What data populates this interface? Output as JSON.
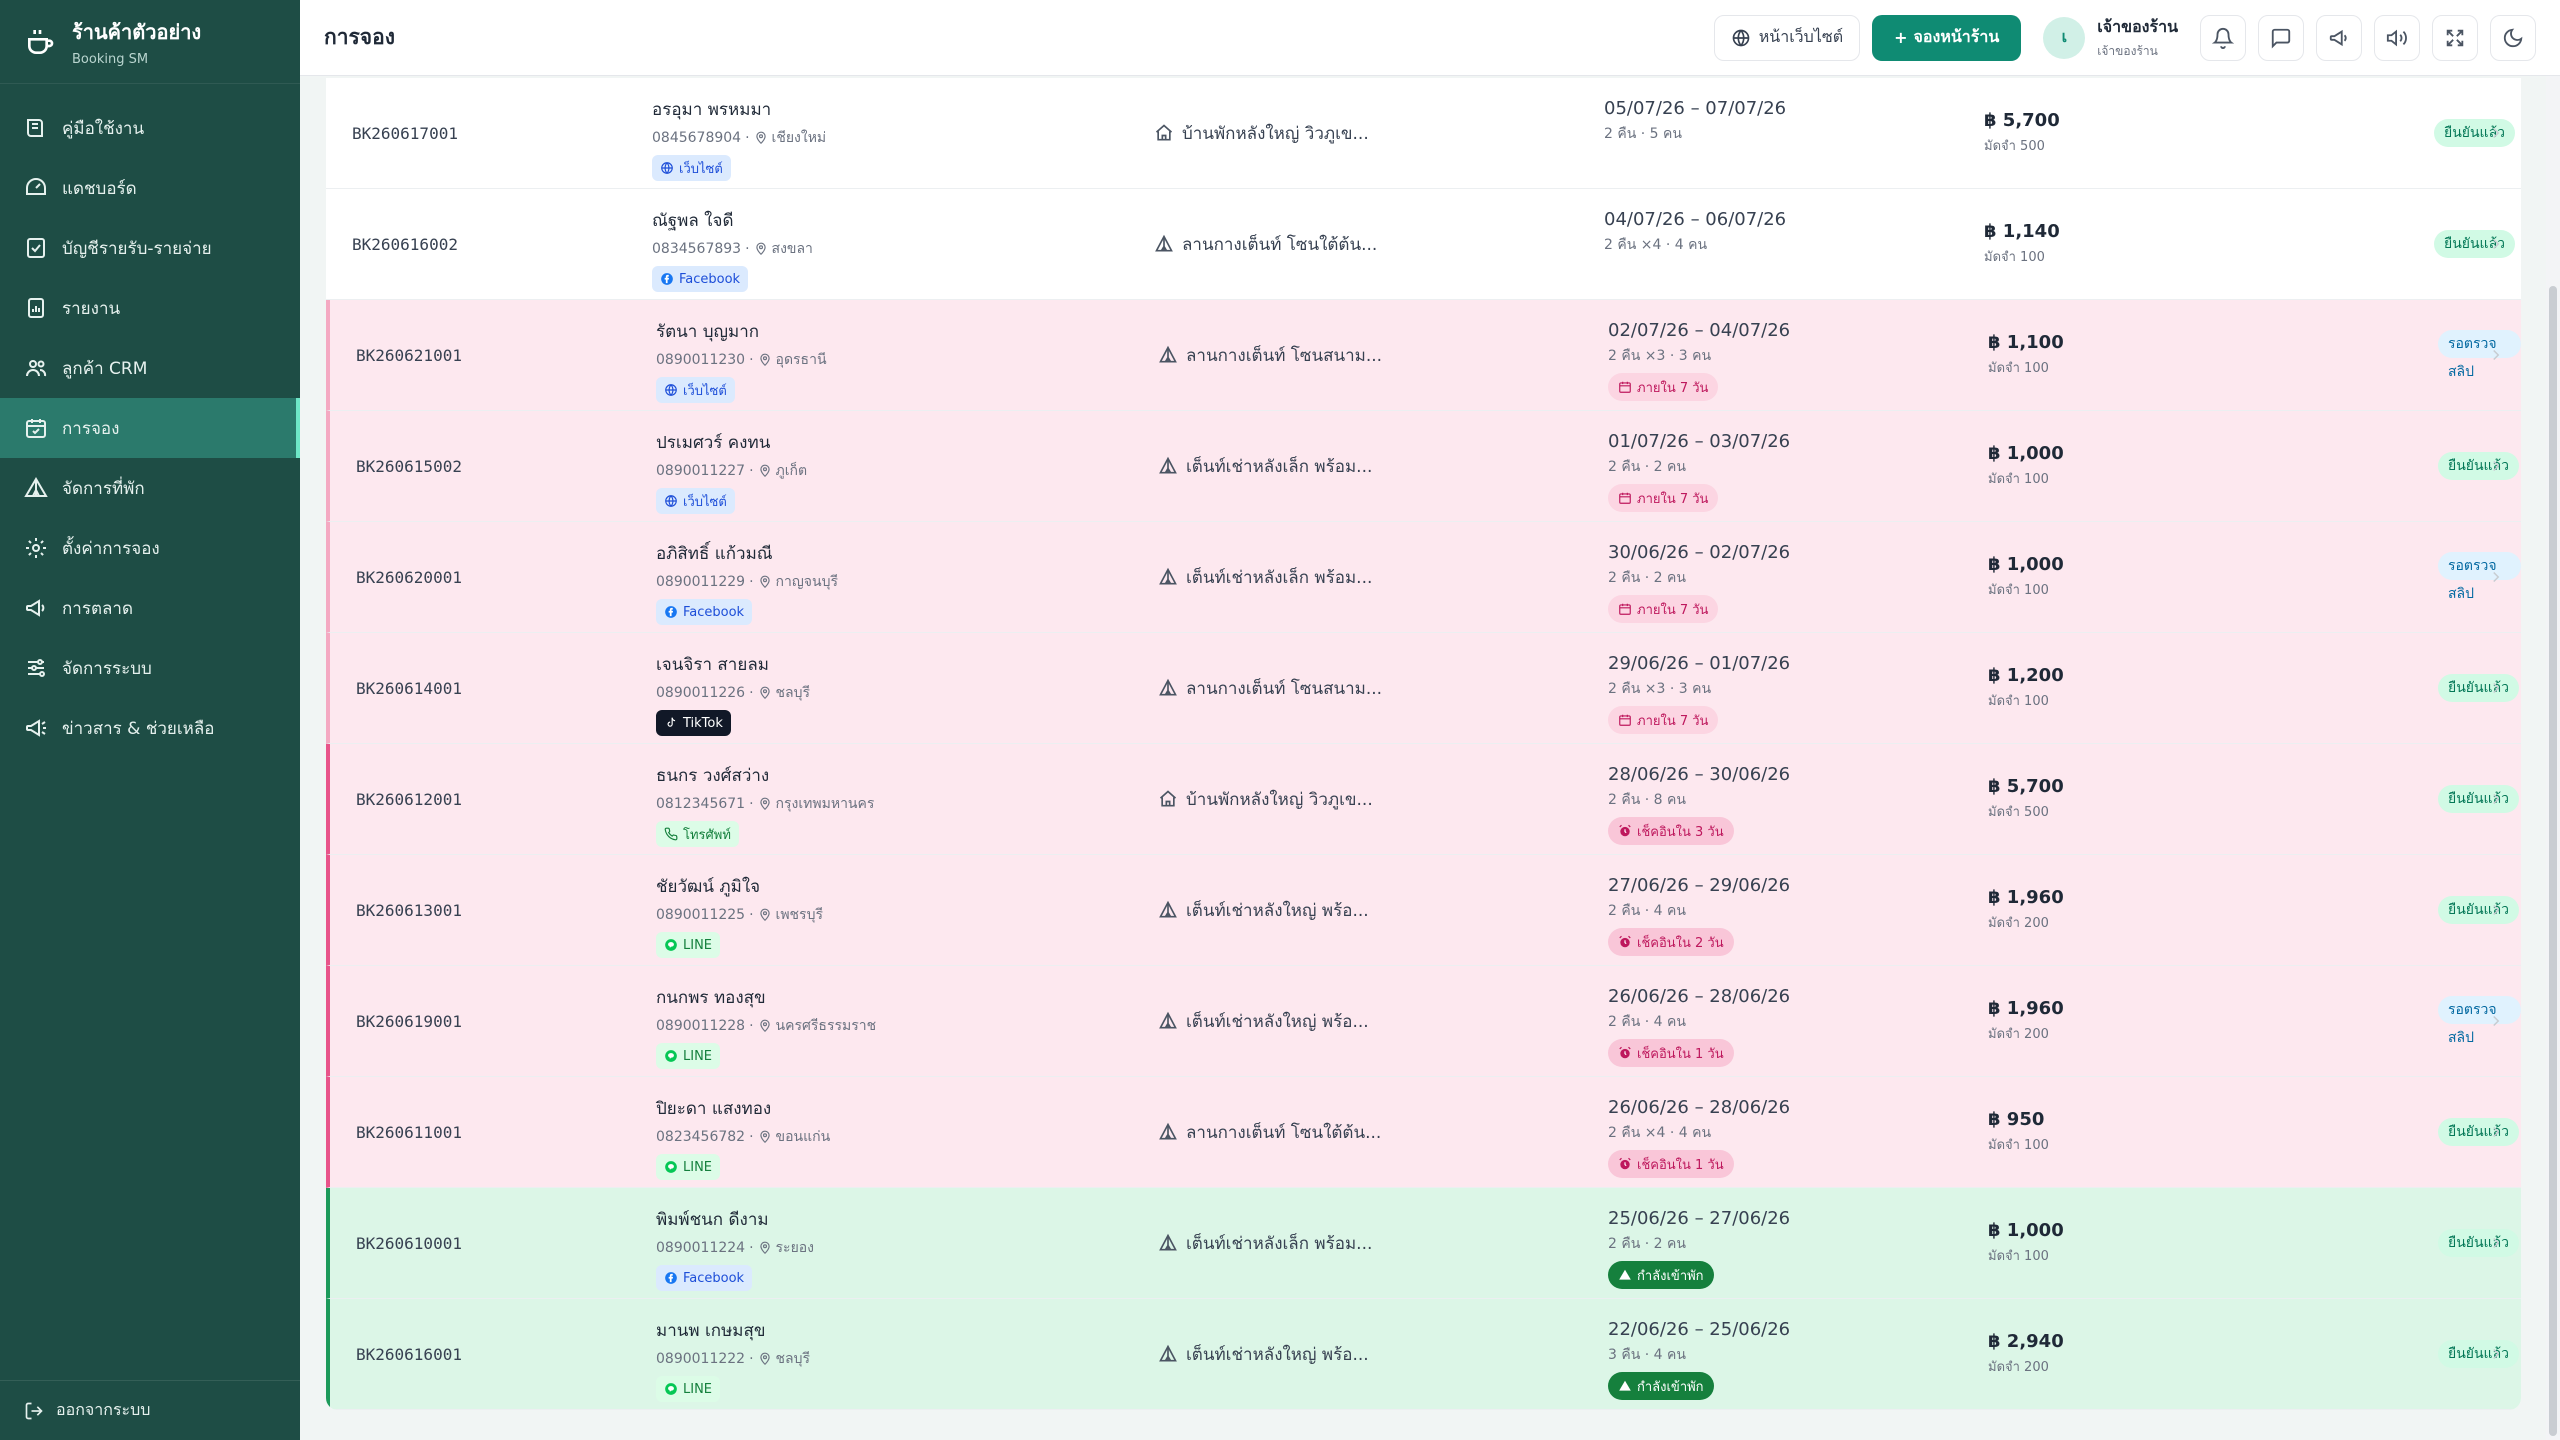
{
  "brand": {
    "title": "ร้านค้าตัวอย่าง",
    "subtitle": "Booking SM"
  },
  "sidebar": {
    "items": [
      {
        "label": "คู่มือใช้งาน",
        "icon": "book-icon"
      },
      {
        "label": "แดชบอร์ด",
        "icon": "dashboard-icon"
      },
      {
        "label": "บัญชีรายรับ-รายจ่าย",
        "icon": "ledger-icon"
      },
      {
        "label": "รายงาน",
        "icon": "report-icon"
      },
      {
        "label": "ลูกค้า CRM",
        "icon": "users-icon"
      },
      {
        "label": "การจอง",
        "icon": "calendar-icon",
        "active": true
      },
      {
        "label": "จัดการที่พัก",
        "icon": "tent-icon"
      },
      {
        "label": "ตั้งค่าการจอง",
        "icon": "gear-icon"
      },
      {
        "label": "การตลาด",
        "icon": "megaphone-icon"
      },
      {
        "label": "จัดการระบบ",
        "icon": "sliders-icon"
      },
      {
        "label": "ข่าวสาร & ช่วยเหลือ",
        "icon": "announce-icon"
      }
    ],
    "logout": "ออกจากระบบ"
  },
  "header": {
    "title": "การจอง",
    "website_btn": "หน้าเว็บไซต์",
    "book_btn": "จองหน้าร้าน",
    "user_initial": "เ",
    "user_name": "เจ้าของร้าน",
    "user_role": "เจ้าของร้าน"
  },
  "bookings": [
    {
      "id": "BK260617001",
      "name": "อรอุมา พรหมมา",
      "phone": "0845678904",
      "province": "เชียงใหม่",
      "channel": "เว็บไซต์",
      "channel_type": "web",
      "room": "บ้านพักหลังใหญ่ วิวภูเข...",
      "room_icon": "home",
      "dates": "05/07/26 – 07/07/26",
      "nights": "2 คืน · 5 คน",
      "badge": "",
      "badge_type": "",
      "price": "฿ 5,700",
      "deposit": "มัดจำ 500",
      "status": "ยืนยันแล้ว",
      "status_type": "ok",
      "row": ""
    },
    {
      "id": "BK260616002",
      "name": "ณัฐพล ใจดี",
      "phone": "0834567893",
      "province": "สงขลา",
      "channel": "Facebook",
      "channel_type": "fb",
      "room": "ลานกางเต็นท์ โซนใต้ต้น...",
      "room_icon": "tent",
      "dates": "04/07/26 – 06/07/26",
      "nights": "2 คืน ×4 · 4 คน",
      "badge": "",
      "badge_type": "",
      "price": "฿ 1,140",
      "deposit": "มัดจำ 100",
      "status": "ยืนยันแล้ว",
      "status_type": "ok",
      "row": ""
    },
    {
      "id": "BK260621001",
      "name": "รัตนา บุญมาก",
      "phone": "0890011230",
      "province": "อุดรธานี",
      "channel": "เว็บไซต์",
      "channel_type": "web",
      "room": "ลานกางเต็นท์ โซนสนาม...",
      "room_icon": "tent",
      "dates": "02/07/26 – 04/07/26",
      "nights": "2 คืน ×3 · 3 คน",
      "badge": "ภายใน 7 วัน",
      "badge_type": "soon",
      "price": "฿ 1,100",
      "deposit": "มัดจำ 100",
      "status": "รอตรวจสลิป",
      "status_type": "wait",
      "row": "pink"
    },
    {
      "id": "BK260615002",
      "name": "ปรเมศวร์ คงทน",
      "phone": "0890011227",
      "province": "ภูเก็ต",
      "channel": "เว็บไซต์",
      "channel_type": "web",
      "room": "เต็นท์เช่าหลังเล็ก พร้อม...",
      "room_icon": "tent",
      "dates": "01/07/26 – 03/07/26",
      "nights": "2 คืน · 2 คน",
      "badge": "ภายใน 7 วัน",
      "badge_type": "soon",
      "price": "฿ 1,000",
      "deposit": "มัดจำ 100",
      "status": "ยืนยันแล้ว",
      "status_type": "ok",
      "row": "pink"
    },
    {
      "id": "BK260620001",
      "name": "อภิสิทธิ์ แก้วมณี",
      "phone": "0890011229",
      "province": "กาญจนบุรี",
      "channel": "Facebook",
      "channel_type": "fb",
      "room": "เต็นท์เช่าหลังเล็ก พร้อม...",
      "room_icon": "tent",
      "dates": "30/06/26 – 02/07/26",
      "nights": "2 คืน · 2 คน",
      "badge": "ภายใน 7 วัน",
      "badge_type": "soon",
      "price": "฿ 1,000",
      "deposit": "มัดจำ 100",
      "status": "รอตรวจสลิป",
      "status_type": "wait",
      "row": "pink"
    },
    {
      "id": "BK260614001",
      "name": "เจนจิรา สายลม",
      "phone": "0890011226",
      "province": "ชลบุรี",
      "channel": "TikTok",
      "channel_type": "tt",
      "room": "ลานกางเต็นท์ โซนสนาม...",
      "room_icon": "tent",
      "dates": "29/06/26 – 01/07/26",
      "nights": "2 คืน ×3 · 3 คน",
      "badge": "ภายใน 7 วัน",
      "badge_type": "soon",
      "price": "฿ 1,200",
      "deposit": "มัดจำ 100",
      "status": "ยืนยันแล้ว",
      "status_type": "ok",
      "row": "pink"
    },
    {
      "id": "BK260612001",
      "name": "ธนกร วงศ์สว่าง",
      "phone": "0812345671",
      "province": "กรุงเทพมหานคร",
      "channel": "โทรศัพท์",
      "channel_type": "phone",
      "room": "บ้านพักหลังใหญ่ วิวภูเข...",
      "room_icon": "home",
      "dates": "28/06/26 – 30/06/26",
      "nights": "2 คืน · 8 คน",
      "badge": "เช็คอินใน 3 วัน",
      "badge_type": "checkin",
      "price": "฿ 5,700",
      "deposit": "มัดจำ 500",
      "status": "ยืนยันแล้ว",
      "status_type": "ok",
      "row": "pink-strong"
    },
    {
      "id": "BK260613001",
      "name": "ชัยวัฒน์ ภูมิใจ",
      "phone": "0890011225",
      "province": "เพชรบุรี",
      "channel": "LINE",
      "channel_type": "line",
      "room": "เต็นท์เช่าหลังใหญ่ พร้อ...",
      "room_icon": "tent",
      "dates": "27/06/26 – 29/06/26",
      "nights": "2 คืน · 4 คน",
      "badge": "เช็คอินใน 2 วัน",
      "badge_type": "checkin",
      "price": "฿ 1,960",
      "deposit": "มัดจำ 200",
      "status": "ยืนยันแล้ว",
      "status_type": "ok",
      "row": "pink-strong"
    },
    {
      "id": "BK260619001",
      "name": "กนกพร ทองสุข",
      "phone": "0890011228",
      "province": "นครศรีธรรมราช",
      "channel": "LINE",
      "channel_type": "line",
      "room": "เต็นท์เช่าหลังใหญ่ พร้อ...",
      "room_icon": "tent",
      "dates": "26/06/26 – 28/06/26",
      "nights": "2 คืน · 4 คน",
      "badge": "เช็คอินใน 1 วัน",
      "badge_type": "checkin",
      "price": "฿ 1,960",
      "deposit": "มัดจำ 200",
      "status": "รอตรวจสลิป",
      "status_type": "wait",
      "row": "pink-strong"
    },
    {
      "id": "BK260611001",
      "name": "ปิยะดา แสงทอง",
      "phone": "0823456782",
      "province": "ขอนแก่น",
      "channel": "LINE",
      "channel_type": "line",
      "room": "ลานกางเต็นท์ โซนใต้ต้น...",
      "room_icon": "tent",
      "dates": "26/06/26 – 28/06/26",
      "nights": "2 คืน ×4 · 4 คน",
      "badge": "เช็คอินใน 1 วัน",
      "badge_type": "checkin",
      "price": "฿ 950",
      "deposit": "มัดจำ 100",
      "status": "ยืนยันแล้ว",
      "status_type": "ok",
      "row": "pink-strong"
    },
    {
      "id": "BK260610001",
      "name": "พิมพ์ชนก ดีงาม",
      "phone": "0890011224",
      "province": "ระยอง",
      "channel": "Facebook",
      "channel_type": "fb",
      "room": "เต็นท์เช่าหลังเล็ก พร้อม...",
      "room_icon": "tent",
      "dates": "25/06/26 – 27/06/26",
      "nights": "2 คืน · 2 คน",
      "badge": "กำลังเข้าพัก",
      "badge_type": "staying",
      "price": "฿ 1,000",
      "deposit": "มัดจำ 100",
      "status": "ยืนยันแล้ว",
      "status_type": "ok",
      "row": "green"
    },
    {
      "id": "BK260616001",
      "name": "มานพ เกษมสุข",
      "phone": "0890011222",
      "province": "ชลบุรี",
      "channel": "LINE",
      "channel_type": "line",
      "room": "เต็นท์เช่าหลังใหญ่ พร้อ...",
      "room_icon": "tent",
      "dates": "22/06/26 – 25/06/26",
      "nights": "3 คืน · 4 คน",
      "badge": "กำลังเข้าพัก",
      "badge_type": "staying",
      "price": "฿ 2,940",
      "deposit": "มัดจำ 200",
      "status": "ยืนยันแล้ว",
      "status_type": "ok",
      "row": "green"
    }
  ]
}
